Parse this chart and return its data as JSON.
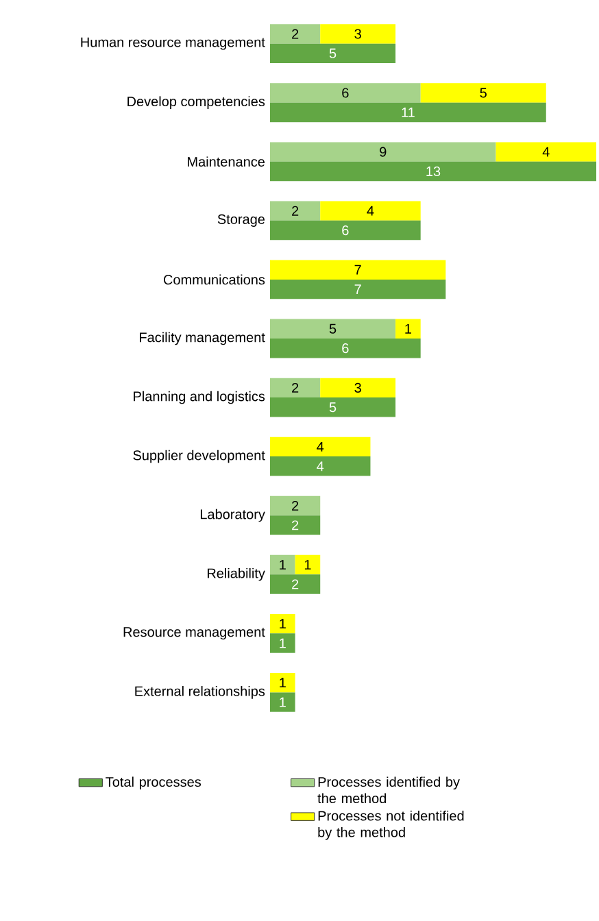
{
  "chart_data": [
    {
      "type": "bar",
      "orientation": "horizontal",
      "stacked": true,
      "legend": "bottom",
      "tick_labels": "y",
      "categories": [
        "Human resource management",
        "Develop competencies",
        "Maintenance",
        "Storage",
        "Communications",
        "Facility management",
        "Planning and logistics",
        "Supplier development",
        "Laboratory",
        "Reliability",
        "Resource management",
        "External relationships"
      ],
      "series": [
        {
          "name": "Processes identified by the method",
          "color": "#a6d38a",
          "values": [
            2,
            6,
            9,
            2,
            0,
            5,
            2,
            0,
            2,
            1,
            0,
            0
          ],
          "value_labels": [
            "2",
            "6",
            "9",
            "2",
            null,
            "5",
            "2",
            null,
            "2",
            "1",
            null,
            null
          ]
        },
        {
          "name": "Processes not identified by the method",
          "color": "#ffff00",
          "values": [
            3,
            5,
            4,
            4,
            7,
            1,
            3,
            4,
            0,
            1,
            1,
            1
          ],
          "value_labels": [
            "3",
            "5",
            "4",
            "4",
            "7",
            "1",
            "3",
            "4",
            null,
            "1",
            "1",
            "1"
          ]
        }
      ]
    },
    {
      "type": "bar",
      "orientation": "horizontal",
      "legend": "bottom",
      "tick_labels": false,
      "categories": [
        null,
        null,
        null,
        null,
        null,
        null,
        null,
        null,
        null,
        null,
        null,
        null
      ],
      "series": [
        {
          "name": "Total processes",
          "color": "#62a744",
          "values": [
            5,
            11,
            13,
            6,
            7,
            6,
            5,
            4,
            2,
            2,
            1,
            1
          ],
          "value_labels": [
            "5",
            "11",
            "13",
            "6",
            "7",
            "6",
            "5",
            "4",
            "2",
            "2",
            "1",
            "1"
          ]
        }
      ]
    }
  ]
}
